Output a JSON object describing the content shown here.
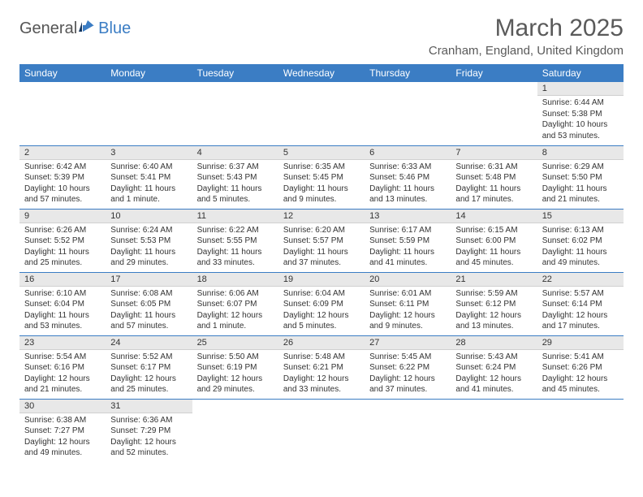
{
  "logo": {
    "text1": "General",
    "text2": "Blue"
  },
  "header": {
    "title": "March 2025",
    "location": "Cranham, England, United Kingdom"
  },
  "colors": {
    "accent": "#3b7dc4",
    "daynum_bg": "#e8e8e8",
    "text": "#333333"
  },
  "calendar": {
    "day_headers": [
      "Sunday",
      "Monday",
      "Tuesday",
      "Wednesday",
      "Thursday",
      "Friday",
      "Saturday"
    ],
    "weeks": [
      [
        null,
        null,
        null,
        null,
        null,
        null,
        {
          "n": "1",
          "sunrise": "6:44 AM",
          "sunset": "5:38 PM",
          "daylight": "10 hours and 53 minutes."
        }
      ],
      [
        {
          "n": "2",
          "sunrise": "6:42 AM",
          "sunset": "5:39 PM",
          "daylight": "10 hours and 57 minutes."
        },
        {
          "n": "3",
          "sunrise": "6:40 AM",
          "sunset": "5:41 PM",
          "daylight": "11 hours and 1 minute."
        },
        {
          "n": "4",
          "sunrise": "6:37 AM",
          "sunset": "5:43 PM",
          "daylight": "11 hours and 5 minutes."
        },
        {
          "n": "5",
          "sunrise": "6:35 AM",
          "sunset": "5:45 PM",
          "daylight": "11 hours and 9 minutes."
        },
        {
          "n": "6",
          "sunrise": "6:33 AM",
          "sunset": "5:46 PM",
          "daylight": "11 hours and 13 minutes."
        },
        {
          "n": "7",
          "sunrise": "6:31 AM",
          "sunset": "5:48 PM",
          "daylight": "11 hours and 17 minutes."
        },
        {
          "n": "8",
          "sunrise": "6:29 AM",
          "sunset": "5:50 PM",
          "daylight": "11 hours and 21 minutes."
        }
      ],
      [
        {
          "n": "9",
          "sunrise": "6:26 AM",
          "sunset": "5:52 PM",
          "daylight": "11 hours and 25 minutes."
        },
        {
          "n": "10",
          "sunrise": "6:24 AM",
          "sunset": "5:53 PM",
          "daylight": "11 hours and 29 minutes."
        },
        {
          "n": "11",
          "sunrise": "6:22 AM",
          "sunset": "5:55 PM",
          "daylight": "11 hours and 33 minutes."
        },
        {
          "n": "12",
          "sunrise": "6:20 AM",
          "sunset": "5:57 PM",
          "daylight": "11 hours and 37 minutes."
        },
        {
          "n": "13",
          "sunrise": "6:17 AM",
          "sunset": "5:59 PM",
          "daylight": "11 hours and 41 minutes."
        },
        {
          "n": "14",
          "sunrise": "6:15 AM",
          "sunset": "6:00 PM",
          "daylight": "11 hours and 45 minutes."
        },
        {
          "n": "15",
          "sunrise": "6:13 AM",
          "sunset": "6:02 PM",
          "daylight": "11 hours and 49 minutes."
        }
      ],
      [
        {
          "n": "16",
          "sunrise": "6:10 AM",
          "sunset": "6:04 PM",
          "daylight": "11 hours and 53 minutes."
        },
        {
          "n": "17",
          "sunrise": "6:08 AM",
          "sunset": "6:05 PM",
          "daylight": "11 hours and 57 minutes."
        },
        {
          "n": "18",
          "sunrise": "6:06 AM",
          "sunset": "6:07 PM",
          "daylight": "12 hours and 1 minute."
        },
        {
          "n": "19",
          "sunrise": "6:04 AM",
          "sunset": "6:09 PM",
          "daylight": "12 hours and 5 minutes."
        },
        {
          "n": "20",
          "sunrise": "6:01 AM",
          "sunset": "6:11 PM",
          "daylight": "12 hours and 9 minutes."
        },
        {
          "n": "21",
          "sunrise": "5:59 AM",
          "sunset": "6:12 PM",
          "daylight": "12 hours and 13 minutes."
        },
        {
          "n": "22",
          "sunrise": "5:57 AM",
          "sunset": "6:14 PM",
          "daylight": "12 hours and 17 minutes."
        }
      ],
      [
        {
          "n": "23",
          "sunrise": "5:54 AM",
          "sunset": "6:16 PM",
          "daylight": "12 hours and 21 minutes."
        },
        {
          "n": "24",
          "sunrise": "5:52 AM",
          "sunset": "6:17 PM",
          "daylight": "12 hours and 25 minutes."
        },
        {
          "n": "25",
          "sunrise": "5:50 AM",
          "sunset": "6:19 PM",
          "daylight": "12 hours and 29 minutes."
        },
        {
          "n": "26",
          "sunrise": "5:48 AM",
          "sunset": "6:21 PM",
          "daylight": "12 hours and 33 minutes."
        },
        {
          "n": "27",
          "sunrise": "5:45 AM",
          "sunset": "6:22 PM",
          "daylight": "12 hours and 37 minutes."
        },
        {
          "n": "28",
          "sunrise": "5:43 AM",
          "sunset": "6:24 PM",
          "daylight": "12 hours and 41 minutes."
        },
        {
          "n": "29",
          "sunrise": "5:41 AM",
          "sunset": "6:26 PM",
          "daylight": "12 hours and 45 minutes."
        }
      ],
      [
        {
          "n": "30",
          "sunrise": "6:38 AM",
          "sunset": "7:27 PM",
          "daylight": "12 hours and 49 minutes."
        },
        {
          "n": "31",
          "sunrise": "6:36 AM",
          "sunset": "7:29 PM",
          "daylight": "12 hours and 52 minutes."
        },
        null,
        null,
        null,
        null,
        null
      ]
    ],
    "labels": {
      "sunrise": "Sunrise:",
      "sunset": "Sunset:",
      "daylight": "Daylight:"
    }
  }
}
